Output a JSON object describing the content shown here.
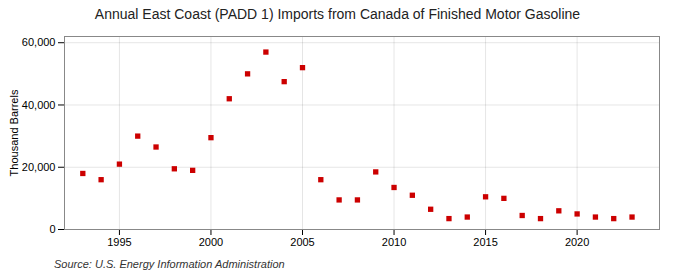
{
  "chart_data": {
    "type": "scatter",
    "title": "Annual East Coast (PADD 1) Imports from Canada of Finished Motor Gasoline",
    "ylabel": "Thousand Barrels",
    "source": "Source: U.S. Energy Information Administration",
    "color": "#cc0000",
    "marker": "square",
    "x": [
      1993,
      1994,
      1995,
      1996,
      1997,
      1998,
      1999,
      2000,
      2001,
      2002,
      2003,
      2004,
      2005,
      2006,
      2007,
      2008,
      2009,
      2010,
      2011,
      2012,
      2013,
      2014,
      2015,
      2016,
      2017,
      2018,
      2019,
      2020,
      2021,
      2022,
      2023
    ],
    "values": [
      18000,
      16000,
      21000,
      30000,
      26500,
      19500,
      19000,
      29500,
      42000,
      50000,
      57000,
      47500,
      52000,
      16000,
      9500,
      9500,
      18500,
      13500,
      11000,
      6500,
      3500,
      4000,
      10500,
      10000,
      4500,
      3500,
      6000,
      5000,
      4000,
      3500,
      4000
    ],
    "xlim": [
      1992,
      2024.5
    ],
    "xticks": [
      1995,
      2000,
      2005,
      2010,
      2015,
      2020
    ],
    "ylim": [
      0,
      62000
    ],
    "yticks": [
      0,
      {
        "value": 20000,
        "label": "20,000"
      },
      {
        "value": 40000,
        "label": "40,000"
      },
      {
        "value": 60000,
        "label": "60,000"
      }
    ],
    "grid": true
  }
}
